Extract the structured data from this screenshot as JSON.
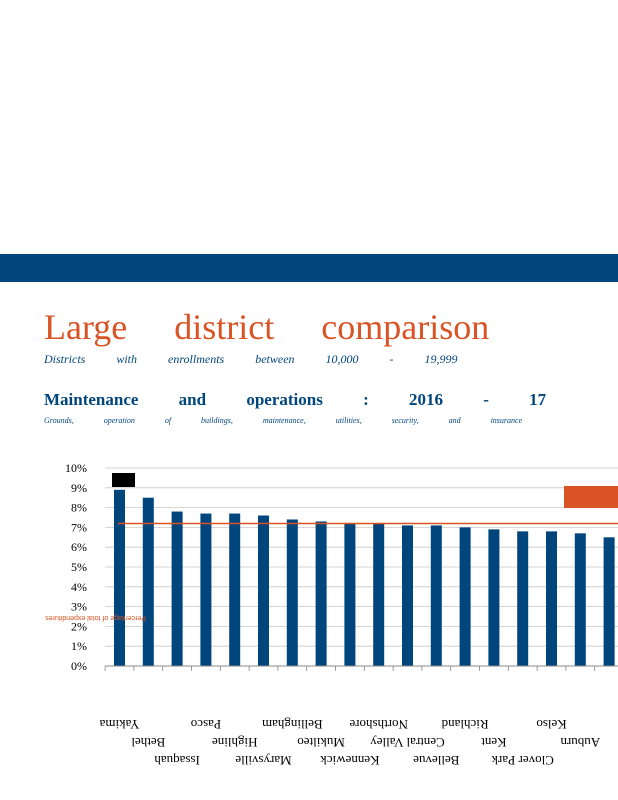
{
  "header": {
    "title": "Large district comparison",
    "subtitle": "Districts with enrollments between 10,000 - 19,999",
    "section_title": "Maintenance and operations : 2016 - 17",
    "section_subtitle": "Grounds, operation of buildings, maintenance, utilities, security, and insurance"
  },
  "colors": {
    "band": "#00457c",
    "title": "#d95324",
    "bar": "#00457c",
    "reference_line": "#d95324",
    "highlight_box": "#000000",
    "legend_box": "#d95324"
  },
  "chart_data": {
    "type": "bar",
    "title": "",
    "xlabel": "",
    "ylabel": "",
    "ylim": [
      0,
      10
    ],
    "yticks": [
      "0%",
      "1%",
      "2%",
      "3%",
      "4%",
      "5%",
      "6%",
      "7%",
      "8%",
      "9%",
      "10%"
    ],
    "grid": true,
    "reference_value": 7.2,
    "values": [
      8.9,
      8.5,
      7.8,
      7.7,
      7.7,
      7.6,
      7.4,
      7.3,
      7.2,
      7.2,
      7.1,
      7.1,
      7.0,
      6.9,
      6.8,
      6.8,
      6.7,
      6.5
    ],
    "categories": [
      "Yakima",
      "Bethel",
      "Issaquah",
      "Pasco",
      "Highline",
      "Marysville",
      "Bellingham",
      "Mukilteo",
      "Kennewick",
      "Northshore",
      "Central Valley",
      "Bellevue",
      "Richland",
      "Kent",
      "Clover Park",
      "Kelso",
      "Auburn",
      ""
    ],
    "note": "Percentage of total expenditures"
  }
}
